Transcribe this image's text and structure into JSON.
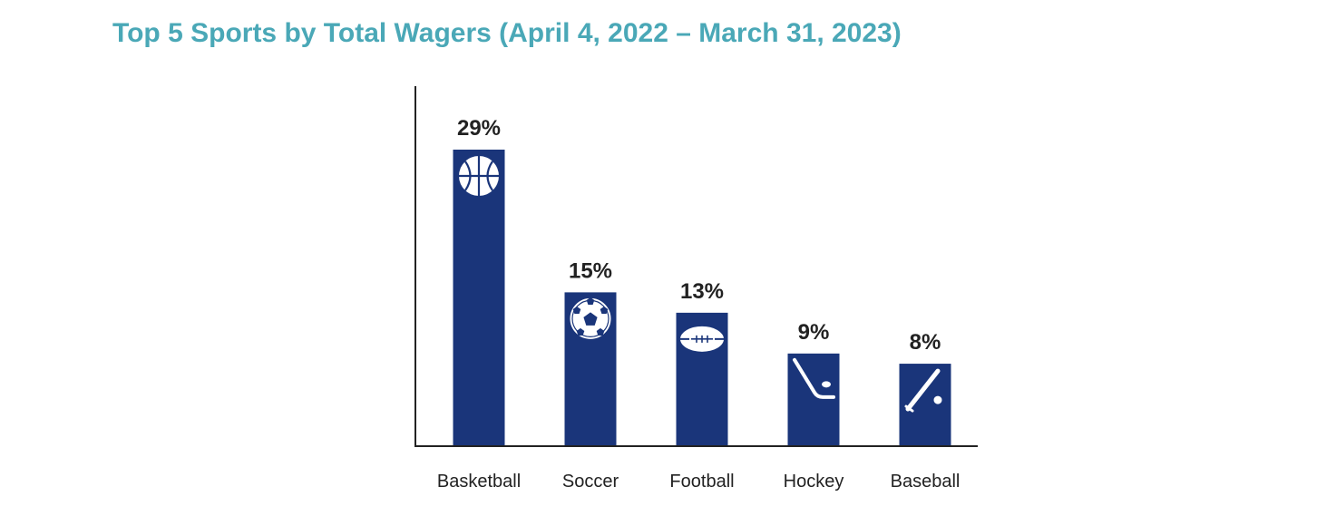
{
  "colors": {
    "title": "#4aa8b7",
    "bar": "#1a357a",
    "axis": "#222222",
    "icon": "#ffffff"
  },
  "chart_data": {
    "type": "bar",
    "title": "Top 5 Sports by Total Wagers (April 4, 2022 – March 31, 2023)",
    "xlabel": "",
    "ylabel": "",
    "ylim": [
      0,
      35
    ],
    "grid": false,
    "categories": [
      "Basketball",
      "Soccer",
      "Football",
      "Hockey",
      "Baseball"
    ],
    "values": [
      29,
      15,
      13,
      9,
      8
    ],
    "data_labels": [
      "29%",
      "15%",
      "13%",
      "9%",
      "8%"
    ],
    "icons": [
      "basketball-icon",
      "soccer-ball-icon",
      "football-icon",
      "hockey-stick-icon",
      "baseball-bat-icon"
    ]
  }
}
